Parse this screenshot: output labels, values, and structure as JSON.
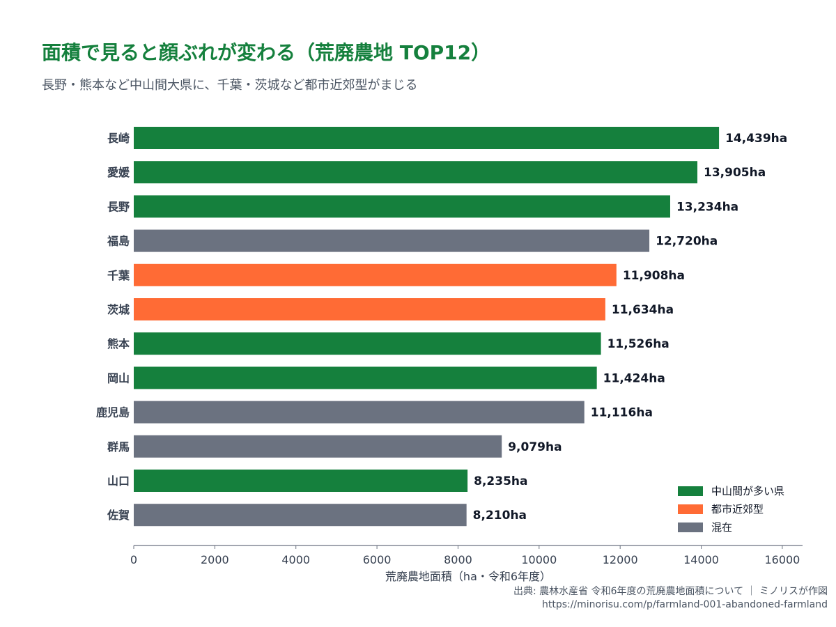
{
  "title": "面積で見ると顔ぶれが変わる（荒廃農地 TOP12）",
  "subtitle": "長野・熊本など中山間大県に、千葉・茨城など都市近郊型がまじる",
  "source": "出典: 農林水産省 令和6年度の荒廃農地面積について ｜ ミノリスが作図",
  "url": "https://minorisu.com/p/farmland-001-abandoned-farmland",
  "colors": {
    "中山間が多い県": "#15803d",
    "都市近郊型": "#ff6b35",
    "混在": "#6b7280"
  },
  "chart_data": {
    "type": "bar",
    "orientation": "horizontal",
    "title": "面積で見ると顔ぶれが変わる（荒廃農地 TOP12）",
    "subtitle": "長野・熊本など中山間大県に、千葉・茨城など都市近郊型がまじる",
    "xlabel": "荒廃農地面積（ha・令和6年度）",
    "ylabel": "",
    "xlim": [
      0,
      16500
    ],
    "xticks": [
      0,
      2000,
      4000,
      6000,
      8000,
      10000,
      12000,
      14000,
      16000
    ],
    "xtick_labels": [
      "0",
      "2000",
      "4000",
      "6000",
      "8000",
      "10000",
      "12000",
      "14000",
      "16000"
    ],
    "grid": false,
    "legend_position": "bottom-right",
    "legend": [
      "中山間が多い県",
      "都市近郊型",
      "混在"
    ],
    "categories": [
      "長崎",
      "愛媛",
      "長野",
      "福島",
      "千葉",
      "茨城",
      "熊本",
      "岡山",
      "鹿児島",
      "群馬",
      "山口",
      "佐賀"
    ],
    "values": [
      14439,
      13905,
      13234,
      12720,
      11908,
      11634,
      11526,
      11424,
      11116,
      9079,
      8235,
      8210
    ],
    "value_labels": [
      "14,439ha",
      "13,905ha",
      "13,234ha",
      "12,720ha",
      "11,908ha",
      "11,634ha",
      "11,526ha",
      "11,424ha",
      "11,116ha",
      "9,079ha",
      "8,235ha",
      "8,210ha"
    ],
    "groups": [
      "中山間が多い県",
      "中山間が多い県",
      "中山間が多い県",
      "混在",
      "都市近郊型",
      "都市近郊型",
      "中山間が多い県",
      "中山間が多い県",
      "混在",
      "混在",
      "中山間が多い県",
      "混在"
    ]
  }
}
